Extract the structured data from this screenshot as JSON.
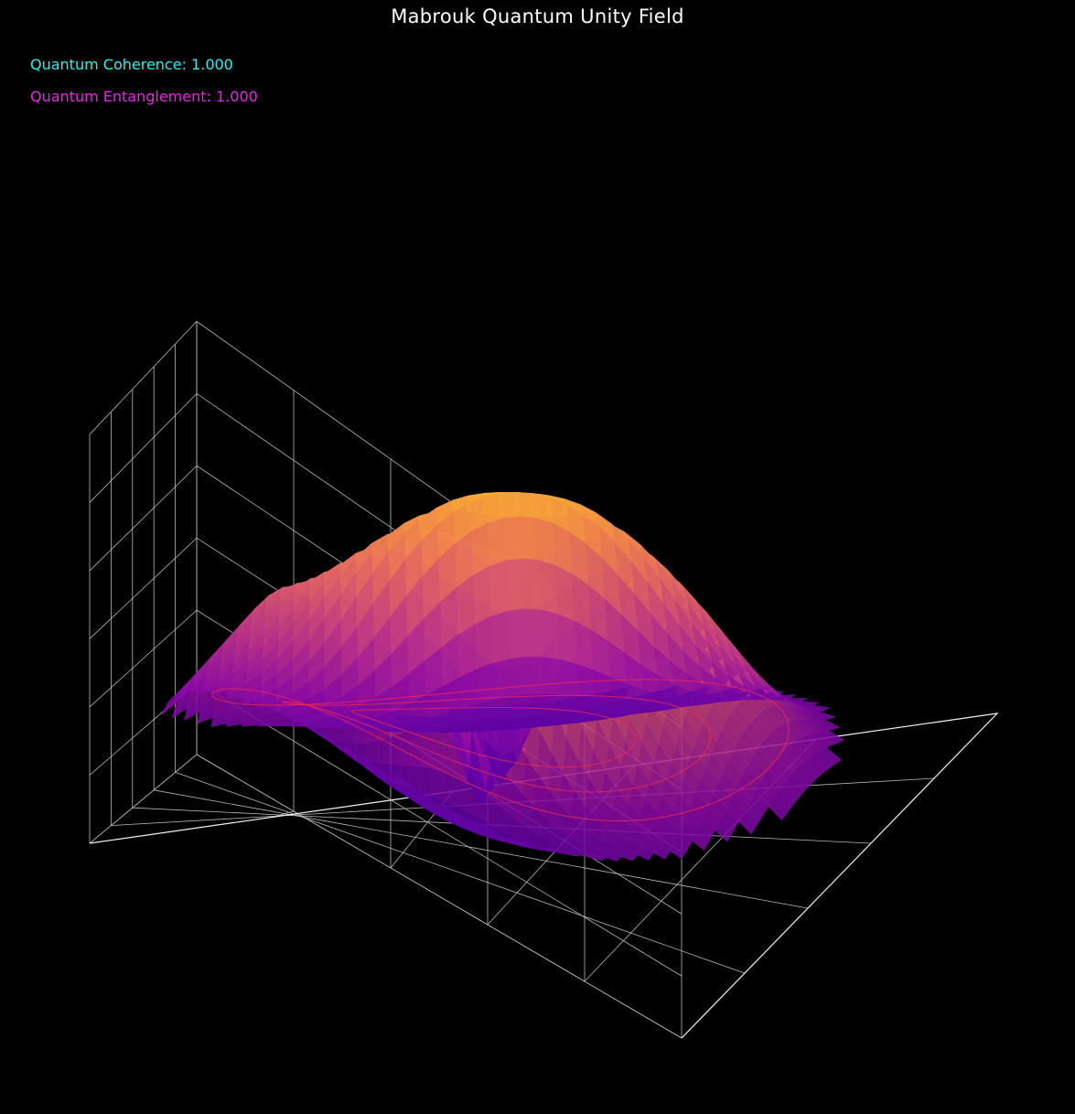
{
  "figure": {
    "title": "Mabrouk Quantum Unity Field",
    "background": "#000000"
  },
  "metrics": [
    {
      "label": "Quantum Coherence",
      "value": "1.000",
      "color": "#22f2f2"
    },
    {
      "label": "Quantum Entanglement",
      "value": "1.000",
      "color": "#f21ef2"
    }
  ],
  "chart_data": {
    "type": "surface3d",
    "title": "Mabrouk Quantum Unity Field",
    "colormap": "plasma",
    "grid": true,
    "tick_labels_visible": false,
    "surface_function": "z = sin(2r) * cos(2*theta) * exp(-0.05 r^2), radial ripple rings",
    "xlim": [
      -5,
      5
    ],
    "ylim": [
      -5,
      5
    ],
    "zlim": [
      -1,
      1
    ],
    "contour_rings": {
      "color": "#ff2a4a",
      "radii": [
        2.0,
        3.0,
        4.0
      ]
    }
  }
}
